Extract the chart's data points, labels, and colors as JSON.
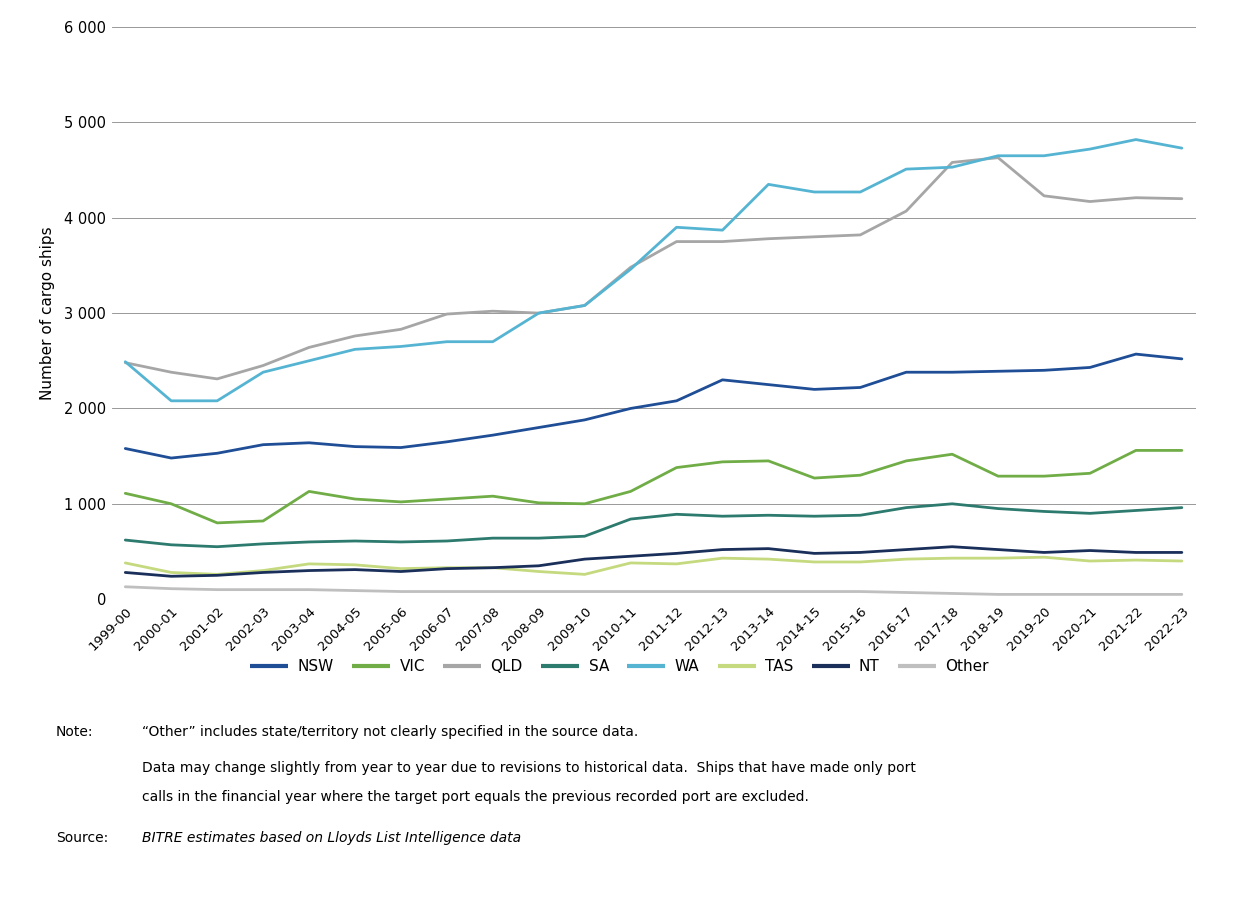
{
  "years": [
    "1999-00",
    "2000-01",
    "2001-02",
    "2002-03",
    "2003-04",
    "2004-05",
    "2005-06",
    "2006-07",
    "2007-08",
    "2008-09",
    "2009-10",
    "2010-11",
    "2011-12",
    "2012-13",
    "2013-14",
    "2014-15",
    "2015-16",
    "2016-17",
    "2017-18",
    "2018-19",
    "2019-20",
    "2020-21",
    "2021-22",
    "2022-23"
  ],
  "series": {
    "NSW": [
      1580,
      1480,
      1530,
      1620,
      1640,
      1600,
      1590,
      1650,
      1720,
      1800,
      1880,
      2000,
      2080,
      2300,
      2250,
      2200,
      2220,
      2380,
      2380,
      2390,
      2400,
      2430,
      2570,
      2520
    ],
    "VIC": [
      1110,
      1000,
      800,
      820,
      1130,
      1050,
      1020,
      1050,
      1080,
      1010,
      1000,
      1130,
      1380,
      1440,
      1450,
      1270,
      1300,
      1450,
      1520,
      1290,
      1290,
      1320,
      1560,
      1560
    ],
    "QLD": [
      2480,
      2380,
      2310,
      2450,
      2640,
      2760,
      2830,
      2990,
      3020,
      3000,
      3080,
      3480,
      3750,
      3750,
      3780,
      3800,
      3820,
      4070,
      4580,
      4630,
      4230,
      4170,
      4210,
      4200
    ],
    "SA": [
      620,
      570,
      550,
      580,
      600,
      610,
      600,
      610,
      640,
      640,
      660,
      840,
      890,
      870,
      880,
      870,
      880,
      960,
      1000,
      950,
      920,
      900,
      930,
      960
    ],
    "WA": [
      2490,
      2080,
      2080,
      2380,
      2500,
      2620,
      2650,
      2700,
      2700,
      3000,
      3080,
      3460,
      3900,
      3870,
      4350,
      4270,
      4270,
      4510,
      4530,
      4650,
      4650,
      4720,
      4820,
      4730
    ],
    "TAS": [
      380,
      280,
      260,
      300,
      370,
      360,
      320,
      330,
      330,
      290,
      260,
      380,
      370,
      430,
      420,
      390,
      390,
      420,
      430,
      430,
      440,
      400,
      410,
      400
    ],
    "NT": [
      280,
      240,
      250,
      280,
      300,
      310,
      290,
      320,
      330,
      350,
      420,
      450,
      480,
      520,
      530,
      480,
      490,
      520,
      550,
      520,
      490,
      510,
      490,
      490
    ],
    "Other": [
      130,
      110,
      100,
      100,
      100,
      90,
      80,
      80,
      80,
      80,
      80,
      80,
      80,
      80,
      80,
      80,
      80,
      70,
      60,
      50,
      50,
      50,
      50,
      50
    ]
  },
  "colors": {
    "NSW": "#1f4e96",
    "VIC": "#70ad47",
    "QLD": "#a6a6a6",
    "SA": "#2d7a6e",
    "WA": "#56b4d3",
    "TAS": "#c5d97f",
    "NT": "#1a2f5a",
    "Other": "#bfbfbf"
  },
  "series_order": [
    "NSW",
    "VIC",
    "QLD",
    "SA",
    "WA",
    "TAS",
    "NT",
    "Other"
  ],
  "ylabel": "Number of cargo ships",
  "ylim": [
    0,
    6000
  ],
  "yticks": [
    0,
    1000,
    2000,
    3000,
    4000,
    5000,
    6000
  ],
  "ytick_labels": [
    "0",
    "1 000",
    "2 000",
    "3 000",
    "4 000",
    "5 000",
    "6 000"
  ],
  "background_color": "#ffffff",
  "line_width": 2.0,
  "note_label": "Note:",
  "note_line1": "“Other” includes state/territory not clearly specified in the source data.",
  "note_line2": "Data may change slightly from year to year due to revisions to historical data.  Ships that have made only port",
  "note_line3": "calls in the financial year where the target port equals the previous recorded port are excluded.",
  "source_label": "Source:",
  "source_text": "BITRE estimates based on Lloyds List Intelligence data"
}
